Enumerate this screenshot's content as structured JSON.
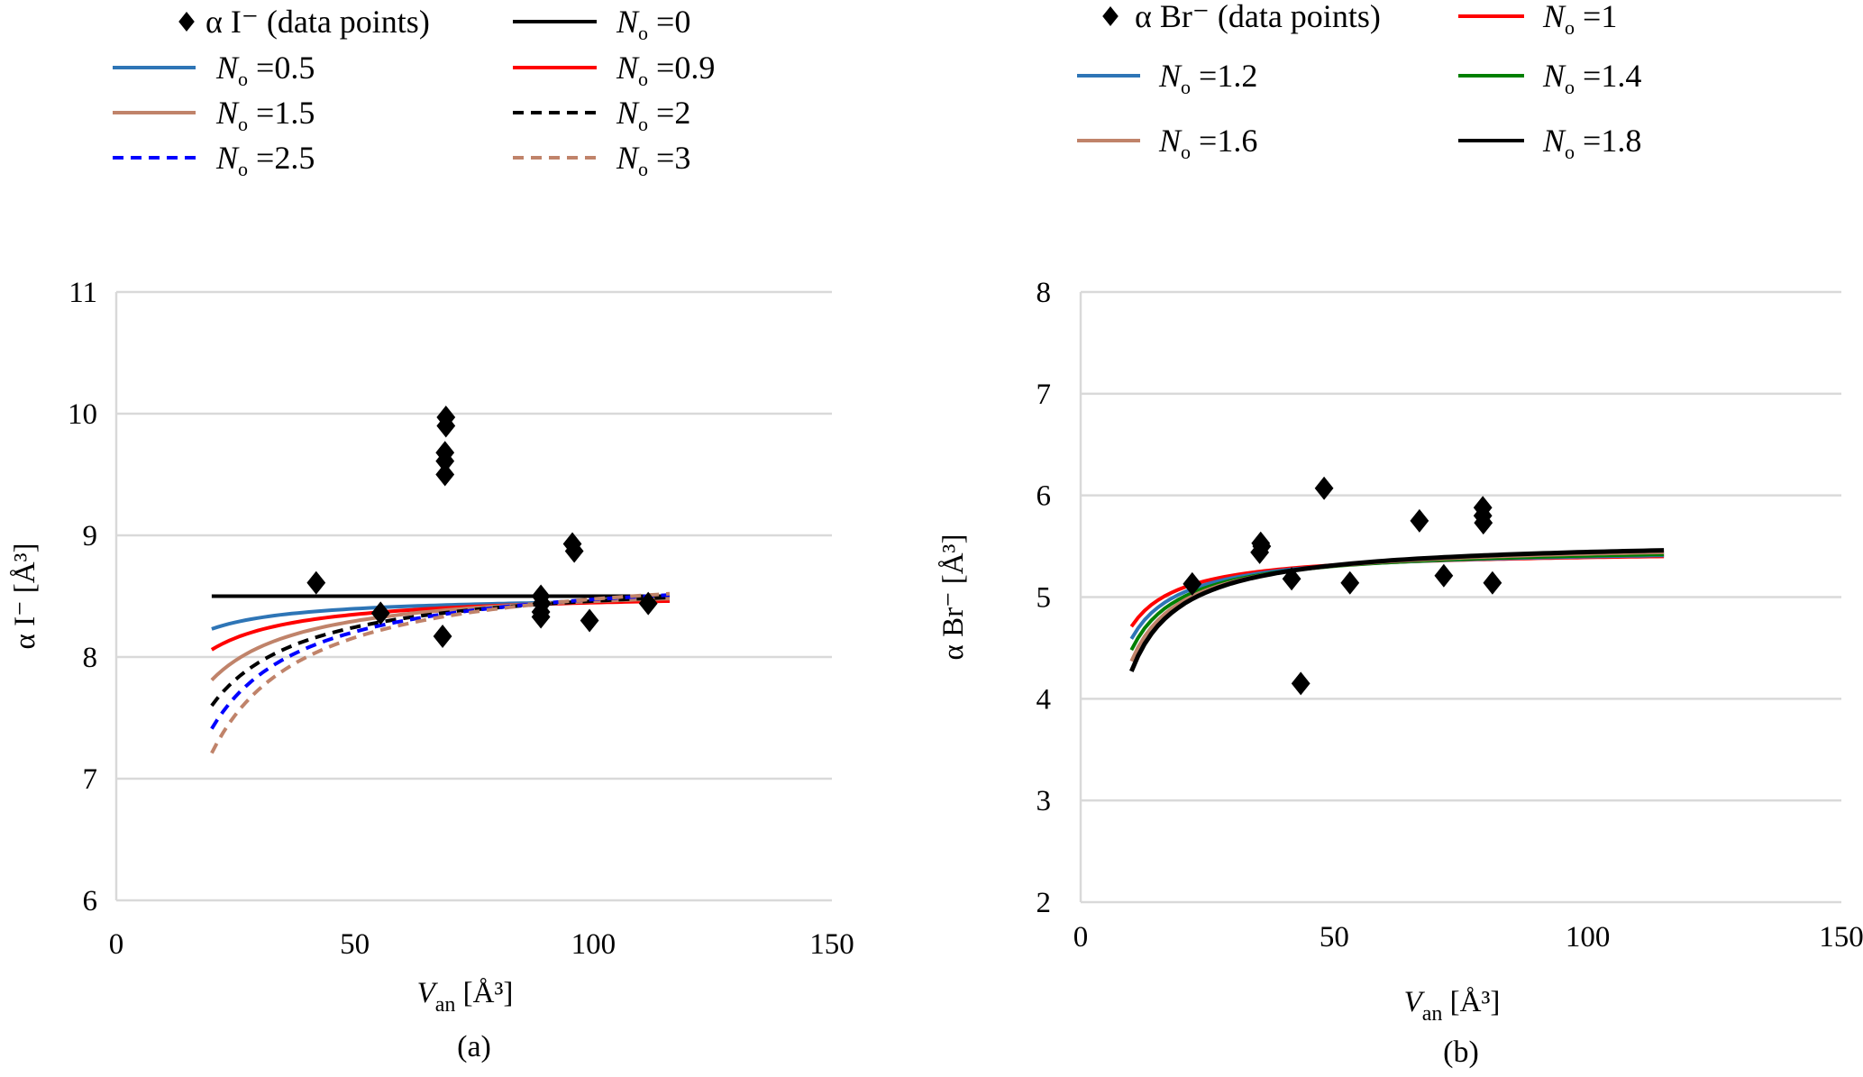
{
  "chart_data": [
    {
      "id": "a",
      "type": "scatter",
      "caption": "(a)",
      "title": "",
      "xlabel": {
        "main": "V",
        "sub": "an",
        "unit": "[Å³]"
      },
      "ylabel": "α I⁻  [Å³]",
      "xlim": [
        0,
        150
      ],
      "ylim": [
        6,
        11
      ],
      "xticks": [
        0,
        50,
        100,
        150
      ],
      "yticks": [
        6,
        7,
        8,
        9,
        10,
        11
      ],
      "grid": "horizontal",
      "legend_position": "top",
      "points_label": "α I⁻ (data points)",
      "points": [
        [
          41.9,
          8.61
        ],
        [
          55.4,
          8.36
        ],
        [
          69.1,
          9.97
        ],
        [
          69.1,
          9.9
        ],
        [
          68.9,
          9.68
        ],
        [
          68.9,
          9.61
        ],
        [
          68.9,
          9.5
        ],
        [
          68.4,
          8.17
        ],
        [
          89.0,
          8.5
        ],
        [
          89.2,
          8.44
        ],
        [
          89.0,
          8.37
        ],
        [
          89.0,
          8.33
        ],
        [
          95.6,
          8.93
        ],
        [
          96.0,
          8.87
        ],
        [
          99.2,
          8.3
        ],
        [
          111.5,
          8.44
        ]
      ],
      "curve_x_range": [
        20,
        116
      ],
      "series": [
        {
          "name": "N₀ =0",
          "N0": "0",
          "color": "#000000",
          "dash": false,
          "start": 8.5,
          "end": 8.5
        },
        {
          "name": "N₀ =0.5",
          "N0": "0.5",
          "color": "#2e75b6",
          "dash": false,
          "start": 8.23,
          "end": 8.46
        },
        {
          "name": "N₀ =0.9",
          "N0": "0.9",
          "color": "#ff0000",
          "dash": false,
          "start": 8.06,
          "end": 8.46
        },
        {
          "name": "N₀ =1.5",
          "N0": "1.5",
          "color": "#c0836a",
          "dash": false,
          "start": 7.81,
          "end": 8.48
        },
        {
          "name": "N₀ =2",
          "N0": "2",
          "color": "#000000",
          "dash": true,
          "start": 7.6,
          "end": 8.49
        },
        {
          "name": "N₀ =2.5",
          "N0": "2.5",
          "color": "#0000ff",
          "dash": true,
          "start": 7.41,
          "end": 8.51
        },
        {
          "name": "N₀ =3",
          "N0": "3",
          "color": "#c0836a",
          "dash": true,
          "start": 7.21,
          "end": 8.52
        }
      ],
      "legend_order": [
        [
          "points",
          0
        ],
        [
          1,
          2
        ],
        [
          3,
          4
        ],
        [
          5,
          6
        ]
      ]
    },
    {
      "id": "b",
      "type": "scatter",
      "caption": "(b)",
      "title": "",
      "xlabel": {
        "main": "V",
        "sub": "an",
        "unit": "[Å³]"
      },
      "ylabel": "α Br⁻  [Å³]",
      "xlim": [
        0,
        150
      ],
      "ylim": [
        2,
        8
      ],
      "xticks": [
        0,
        50,
        100,
        150
      ],
      "yticks": [
        2,
        3,
        4,
        5,
        6,
        7,
        8
      ],
      "grid": "horizontal",
      "legend_position": "top",
      "points_label": "α Br⁻ (data points)",
      "points": [
        [
          22.0,
          5.13
        ],
        [
          35.5,
          5.53
        ],
        [
          35.7,
          5.5
        ],
        [
          35.3,
          5.44
        ],
        [
          41.6,
          5.18
        ],
        [
          43.4,
          4.15
        ],
        [
          48.0,
          6.07
        ],
        [
          53.1,
          5.14
        ],
        [
          66.8,
          5.75
        ],
        [
          71.6,
          5.21
        ],
        [
          79.3,
          5.88
        ],
        [
          79.3,
          5.8
        ],
        [
          79.4,
          5.73
        ],
        [
          81.2,
          5.14
        ]
      ],
      "curve_x_range": [
        10,
        115
      ],
      "series": [
        {
          "name": "N₀ =1",
          "N0": "1",
          "color": "#ff0000",
          "dash": false,
          "start": 4.71,
          "end": 5.4
        },
        {
          "name": "N₀ =1.2",
          "N0": "1.2",
          "color": "#2e75b6",
          "dash": false,
          "start": 4.59,
          "end": 5.41
        },
        {
          "name": "N₀ =1.4",
          "N0": "1.4",
          "color": "#008000",
          "dash": false,
          "start": 4.48,
          "end": 5.42
        },
        {
          "name": "N₀ =1.6",
          "N0": "1.6",
          "color": "#c0836a",
          "dash": false,
          "start": 4.37,
          "end": 5.44
        },
        {
          "name": "N₀ =1.8",
          "N0": "1.8",
          "color": "#000000",
          "dash": false,
          "start": 4.27,
          "end": 5.46
        }
      ],
      "legend_order": [
        [
          "points",
          0
        ],
        [
          1,
          2
        ],
        [
          3,
          4
        ]
      ]
    }
  ]
}
